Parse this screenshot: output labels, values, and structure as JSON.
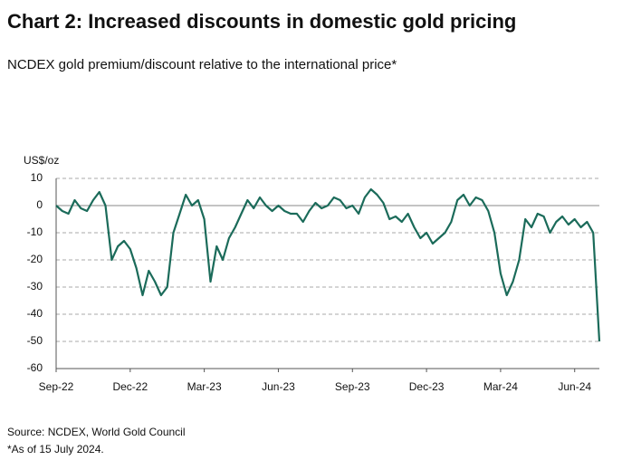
{
  "chart_data": {
    "type": "line",
    "title": "Chart 2: Increased discounts in domestic gold pricing",
    "subtitle": "NCDEX gold premium/discount relative to the international price*",
    "y_label": "US$/oz",
    "source": "Source: NCDEX, World Gold Council",
    "note": "*As of 15 July 2024.",
    "categories": [
      "Sep-22",
      null,
      null,
      null,
      null,
      null,
      null,
      null,
      null,
      null,
      null,
      null,
      "Dec-22",
      null,
      null,
      null,
      null,
      null,
      null,
      null,
      null,
      null,
      null,
      null,
      "Mar-23",
      null,
      null,
      null,
      null,
      null,
      null,
      null,
      null,
      null,
      null,
      null,
      "Jun-23",
      null,
      null,
      null,
      null,
      null,
      null,
      null,
      null,
      null,
      null,
      null,
      "Sep-23",
      null,
      null,
      null,
      null,
      null,
      null,
      null,
      null,
      null,
      null,
      null,
      "Dec-23",
      null,
      null,
      null,
      null,
      null,
      null,
      null,
      null,
      null,
      null,
      null,
      "Mar-24",
      null,
      null,
      null,
      null,
      null,
      null,
      null,
      null,
      null,
      null,
      null,
      "Jun-24",
      null,
      null,
      null,
      null
    ],
    "values": [
      0,
      -2,
      -3,
      2,
      -1,
      -2,
      2,
      5,
      0,
      -20,
      -15,
      -13,
      -16,
      -23,
      -33,
      -24,
      -28,
      -33,
      -30,
      -10,
      -3,
      4,
      0,
      2,
      -5,
      -28,
      -15,
      -20,
      -12,
      -8,
      -3,
      2,
      -1,
      3,
      0,
      -2,
      0,
      -2,
      -3,
      -3,
      -6,
      -2,
      1,
      -1,
      0,
      3,
      2,
      -1,
      0,
      -3,
      3,
      6,
      4,
      1,
      -5,
      -4,
      -6,
      -3,
      -8,
      -12,
      -10,
      -14,
      -12,
      -10,
      -6,
      2,
      4,
      0,
      3,
      2,
      -2,
      -10,
      -25,
      -33,
      -28,
      -20,
      -5,
      -8,
      -3,
      -4,
      -10,
      -6,
      -4,
      -7,
      -5,
      -8,
      -6,
      -10,
      -50
    ],
    "color": "#1b6b5a",
    "ylim": [
      -60,
      10
    ],
    "yticks": [
      -60,
      -50,
      -40,
      -30,
      -20,
      -10,
      0,
      10
    ],
    "grid": true
  }
}
